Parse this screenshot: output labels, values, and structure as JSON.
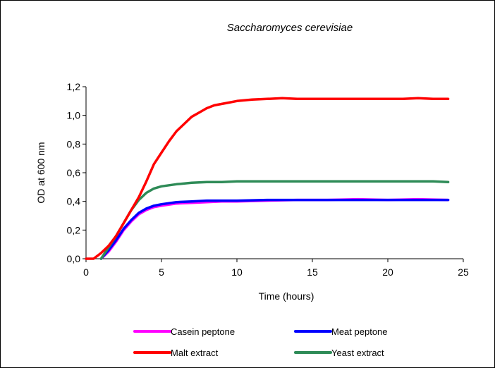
{
  "chart_data": {
    "type": "line",
    "title": "Saccharomyces cerevisiae",
    "xlabel": "Time  (hours)",
    "ylabel": "OD at 600 nm",
    "xlim": [
      0,
      25
    ],
    "ylim": [
      0,
      1.2
    ],
    "x_ticks": [
      "0",
      "5",
      "10",
      "15",
      "20",
      "25"
    ],
    "y_ticks": [
      "0,0",
      "0,2",
      "0,4",
      "0,6",
      "0,8",
      "1,0",
      "1,2"
    ],
    "grid": false,
    "legend_position": "bottom",
    "series": [
      {
        "name": "Casein peptone",
        "color": "#ff00ff",
        "x": [
          1,
          1.5,
          2,
          2.5,
          3,
          3.5,
          4,
          4.5,
          5,
          6,
          7,
          8,
          9,
          10,
          12,
          14,
          16,
          18,
          20,
          22,
          24
        ],
        "y": [
          0.0,
          0.05,
          0.12,
          0.2,
          0.26,
          0.31,
          0.34,
          0.36,
          0.37,
          0.385,
          0.39,
          0.395,
          0.4,
          0.4,
          0.405,
          0.41,
          0.41,
          0.415,
          0.41,
          0.415,
          0.41
        ]
      },
      {
        "name": "Meat peptone",
        "color": "#0000ff",
        "x": [
          1,
          1.5,
          2,
          2.5,
          3,
          3.5,
          4,
          4.5,
          5,
          6,
          7,
          8,
          9,
          10,
          12,
          14,
          16,
          18,
          20,
          22,
          24
        ],
        "y": [
          0.0,
          0.06,
          0.13,
          0.21,
          0.27,
          0.32,
          0.35,
          0.37,
          0.38,
          0.395,
          0.4,
          0.405,
          0.405,
          0.405,
          0.41,
          0.41,
          0.41,
          0.41,
          0.41,
          0.41,
          0.41
        ]
      },
      {
        "name": "Malt extract",
        "color": "#ff0000",
        "x": [
          0,
          0.5,
          1,
          1.5,
          2,
          2.5,
          3,
          3.5,
          4,
          4.5,
          5,
          5.5,
          6,
          6.5,
          7,
          7.5,
          8,
          8.5,
          9,
          9.5,
          10,
          11,
          12,
          13,
          14,
          16,
          18,
          20,
          21,
          22,
          23,
          24
        ],
        "y": [
          0.0,
          0.0,
          0.04,
          0.09,
          0.16,
          0.25,
          0.34,
          0.43,
          0.54,
          0.66,
          0.74,
          0.82,
          0.89,
          0.94,
          0.99,
          1.02,
          1.05,
          1.07,
          1.08,
          1.09,
          1.1,
          1.11,
          1.115,
          1.12,
          1.115,
          1.115,
          1.115,
          1.115,
          1.115,
          1.12,
          1.115,
          1.115
        ]
      },
      {
        "name": "Yeast extract",
        "color": "#2e8b57",
        "x": [
          1,
          1.5,
          2,
          2.5,
          3,
          3.5,
          4,
          4.5,
          5,
          6,
          7,
          8,
          9,
          10,
          12,
          14,
          16,
          18,
          20,
          22,
          23,
          24
        ],
        "y": [
          0.0,
          0.08,
          0.16,
          0.25,
          0.34,
          0.41,
          0.46,
          0.49,
          0.505,
          0.52,
          0.53,
          0.535,
          0.535,
          0.54,
          0.54,
          0.54,
          0.54,
          0.54,
          0.54,
          0.54,
          0.54,
          0.535
        ]
      }
    ]
  }
}
